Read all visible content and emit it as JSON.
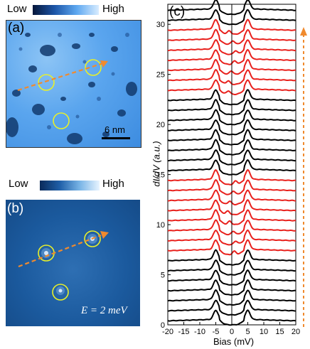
{
  "panel_a": {
    "letter": "(a)",
    "colorbar": {
      "low": "Low",
      "high": "High"
    },
    "scale_bar": "6 nm"
  },
  "panel_b": {
    "letter": "(b)",
    "colorbar": {
      "low": "Low",
      "high": "High"
    },
    "energy_label": "E = 2 meV"
  },
  "panel_c": {
    "letter": "(c)"
  },
  "colors": {
    "black_curve": "#000000",
    "red_curve": "#e8201c",
    "arrow": "#f08a2e",
    "circle": "#e8f02a"
  },
  "chart_data": {
    "type": "line",
    "xlabel": "Bias (mV)",
    "ylabel": "dI/dV (a.u.)",
    "xlim": [
      -20,
      20
    ],
    "ylim": [
      0,
      32
    ],
    "xticks": [
      -20,
      -15,
      -10,
      -5,
      0,
      5,
      10,
      15,
      20
    ],
    "yticks": [
      0,
      5,
      10,
      15,
      20,
      25,
      30
    ],
    "grid": false,
    "offset_per_curve": 1,
    "curve_colors": [
      "black",
      "black",
      "black",
      "black",
      "black",
      "black",
      "black",
      "red",
      "red",
      "red",
      "red",
      "red",
      "red",
      "red",
      "red",
      "black",
      "black",
      "black",
      "black",
      "black",
      "black",
      "black",
      "black",
      "red",
      "red",
      "red",
      "red",
      "red",
      "red",
      "red",
      "black",
      "black"
    ],
    "coherence_peak_bias_mV": 5,
    "vertical_line_bias_mV": 0
  }
}
